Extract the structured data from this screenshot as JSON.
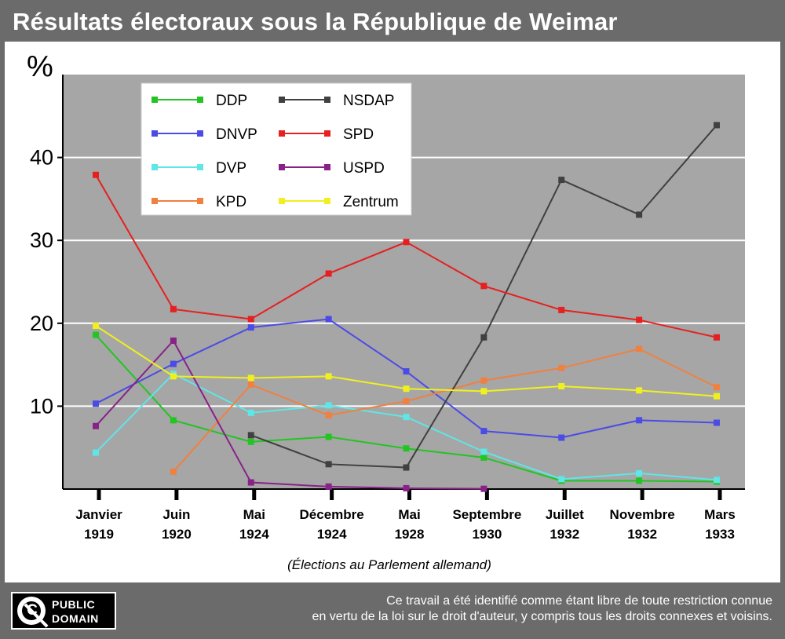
{
  "header": {
    "title": "Résultats électoraux sous la République de Weimar"
  },
  "footer": {
    "badge_line1": "PUBLIC",
    "badge_line2": "DOMAIN",
    "badge_icon": "public-domain-icon",
    "notice_line1": "Ce travail a été identifié comme étant libre de toute restriction connue",
    "notice_line2": "en vertu de la loi sur le droit d'auteur, y compris tous les droits connexes et voisins."
  },
  "chart_data": {
    "type": "line",
    "ylabel": "%",
    "xlabel": "(Élections au Parlement allemand)",
    "ylim": [
      0,
      50
    ],
    "yticks": [
      10,
      20,
      30,
      40
    ],
    "grid": true,
    "legend_position": "top-left",
    "plot_background": "#a6a6a6",
    "categories": [
      [
        "Janvier",
        "1919"
      ],
      [
        "Juin",
        "1920"
      ],
      [
        "Mai",
        "1924"
      ],
      [
        "Décembre",
        "1924"
      ],
      [
        "Mai",
        "1928"
      ],
      [
        "Septembre",
        "1930"
      ],
      [
        "Juillet",
        "1932"
      ],
      [
        "Novembre",
        "1932"
      ],
      [
        "Mars",
        "1933"
      ]
    ],
    "series": [
      {
        "name": "DDP",
        "color": "#22c522",
        "values": [
          18.6,
          8.3,
          5.7,
          6.3,
          4.9,
          3.8,
          1.0,
          1.0,
          0.9
        ]
      },
      {
        "name": "DNVP",
        "color": "#4b4be6",
        "values": [
          10.3,
          15.1,
          19.5,
          20.5,
          14.2,
          7.0,
          6.2,
          8.3,
          8.0
        ]
      },
      {
        "name": "DVP",
        "color": "#5fe6e6",
        "values": [
          4.4,
          13.9,
          9.2,
          10.1,
          8.7,
          4.5,
          1.2,
          1.9,
          1.1
        ]
      },
      {
        "name": "KPD",
        "color": "#f08040",
        "values": [
          null,
          2.1,
          12.6,
          8.9,
          10.6,
          13.1,
          14.6,
          16.9,
          12.3
        ]
      },
      {
        "name": "NSDAP",
        "color": "#404040",
        "values": [
          null,
          null,
          6.5,
          3.0,
          2.6,
          18.3,
          37.3,
          33.1,
          43.9
        ]
      },
      {
        "name": "SPD",
        "color": "#e62020",
        "values": [
          37.9,
          21.7,
          20.5,
          26.0,
          29.8,
          24.5,
          21.6,
          20.4,
          18.3
        ]
      },
      {
        "name": "USPD",
        "color": "#882288",
        "values": [
          7.6,
          17.9,
          0.8,
          0.3,
          0.1,
          0.03,
          null,
          null,
          null
        ]
      },
      {
        "name": "Zentrum",
        "color": "#f0f020",
        "values": [
          19.7,
          13.6,
          13.4,
          13.6,
          12.1,
          11.8,
          12.4,
          11.9,
          11.2
        ]
      }
    ]
  }
}
